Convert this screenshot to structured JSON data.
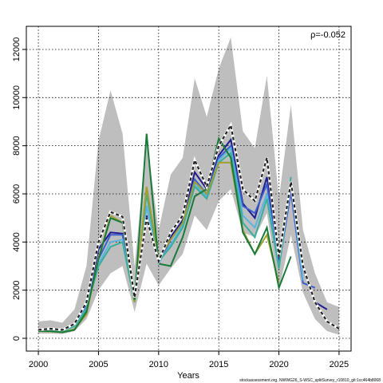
{
  "chart_data": {
    "type": "line",
    "annotation": "ρ=-0.052",
    "x_label": "Years",
    "footer": "stockassessment.org, NWWG26_S-WSC_splitSurvey_r10810_git:1cc464b8068",
    "x": [
      2000,
      2001,
      2002,
      2003,
      2004,
      2005,
      2006,
      2007,
      2008,
      2009,
      2010,
      2011,
      2012,
      2013,
      2014,
      2015,
      2016,
      2017,
      2018,
      2019,
      2020,
      2021,
      2022,
      2023,
      2024,
      2025
    ],
    "band": {
      "color": "#bebebe",
      "upper": [
        700,
        750,
        650,
        1200,
        3000,
        8200,
        10300,
        8500,
        3000,
        8200,
        4500,
        6800,
        7500,
        10800,
        9200,
        11200,
        12500,
        8600,
        7900,
        10900,
        5800,
        9700,
        4500,
        2700,
        1500,
        1300
      ],
      "lower": [
        200,
        200,
        180,
        300,
        800,
        2000,
        2700,
        3000,
        1100,
        3100,
        2200,
        2900,
        3500,
        5100,
        4500,
        5700,
        6200,
        4400,
        4200,
        5200,
        2000,
        4300,
        1900,
        800,
        300,
        150
      ]
    },
    "series": [
      {
        "color": "#1f1b8f",
        "values": [
          350,
          400,
          350,
          600,
          1400,
          3700,
          4400,
          4350,
          1600,
          5100,
          3200,
          4200,
          4900,
          6900,
          6200,
          7600,
          8250,
          5600,
          5000,
          6700,
          3200,
          6300,
          2900,
          1500,
          1200,
          null
        ]
      },
      {
        "color": "#3a5fcd",
        "values": [
          300,
          380,
          330,
          550,
          1300,
          3300,
          4300,
          4300,
          1600,
          5000,
          3100,
          4100,
          4800,
          6600,
          6000,
          7500,
          8000,
          5500,
          5200,
          6400,
          3000,
          6100,
          2300,
          2100,
          null,
          null
        ]
      },
      {
        "color": "#5ab4e0",
        "values": [
          320,
          370,
          320,
          520,
          1250,
          3100,
          4000,
          4100,
          1550,
          5500,
          3150,
          3900,
          4700,
          6400,
          5900,
          7400,
          7900,
          5100,
          4600,
          6000,
          2950,
          6500,
          2400,
          null,
          null,
          null
        ]
      },
      {
        "color": "#3aae9a",
        "values": [
          300,
          350,
          300,
          500,
          1200,
          3000,
          3800,
          4000,
          1500,
          6000,
          3200,
          3800,
          4600,
          6300,
          5800,
          7300,
          7700,
          4800,
          4200,
          5800,
          2900,
          6700,
          null,
          null,
          null,
          null
        ]
      },
      {
        "color": "#a0a030",
        "values": [
          300,
          280,
          250,
          380,
          1000,
          3300,
          5100,
          4800,
          1500,
          6300,
          3300,
          4100,
          4800,
          6500,
          6000,
          7300,
          7300,
          4500,
          3500,
          4300,
          2300,
          null,
          null,
          null,
          null,
          null
        ]
      },
      {
        "color": "#1a7a3a",
        "values": [
          300,
          300,
          250,
          350,
          1100,
          3300,
          5000,
          4800,
          1600,
          8500,
          3100,
          3000,
          4200,
          5900,
          6200,
          8300,
          7500,
          4400,
          3500,
          4600,
          2100,
          3400,
          null,
          null,
          null,
          null
        ]
      },
      {
        "color": "#222222",
        "dashed": true,
        "values": [
          350,
          400,
          350,
          600,
          1500,
          4000,
          5250,
          5050,
          1700,
          5000,
          3200,
          4400,
          5100,
          7400,
          6300,
          8000,
          8850,
          6200,
          5700,
          7500,
          3400,
          6500,
          3000,
          1500,
          700,
          400
        ]
      }
    ],
    "xlim": [
      1999,
      2026
    ],
    "ylim": [
      -530,
      12960
    ],
    "xticks": [
      2000,
      2005,
      2010,
      2015,
      2020,
      2025
    ],
    "yticks": [
      0,
      2000,
      4000,
      6000,
      8000,
      10000,
      12000
    ],
    "grid": true
  }
}
